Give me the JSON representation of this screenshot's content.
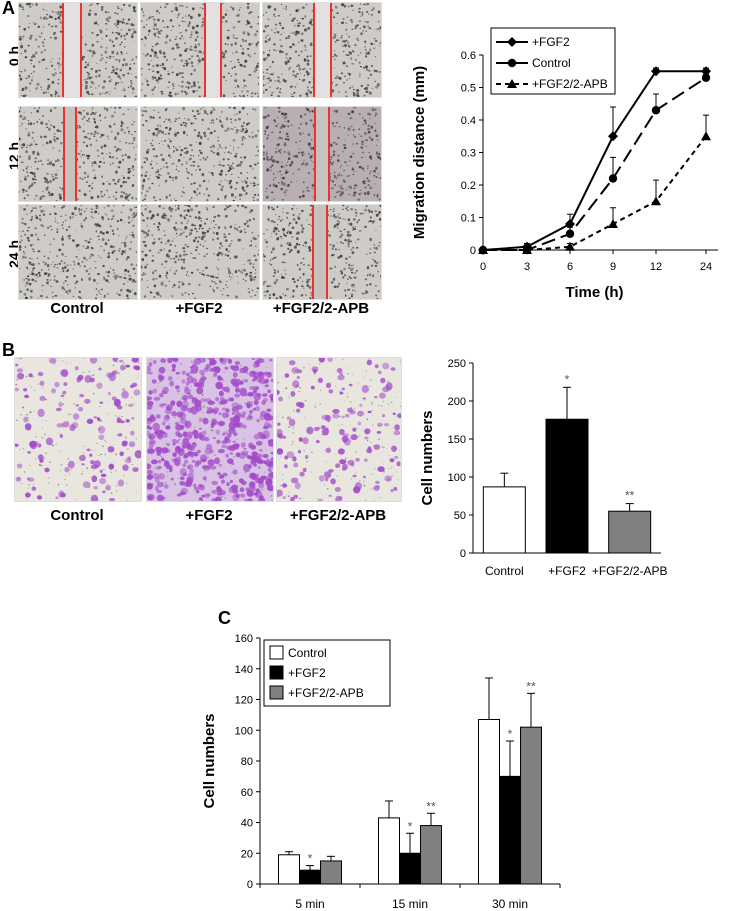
{
  "panels": {
    "a_label": "A",
    "b_label": "B",
    "c_label": "C"
  },
  "panel_a_images": {
    "rows": [
      "0 h",
      "12 h",
      "24 h"
    ],
    "columns": [
      "Control",
      "+FGF2",
      "+FGF2/2-APB"
    ]
  },
  "panel_b_images": {
    "columns": [
      "Control",
      "+FGF2",
      "+FGF2/2-APB"
    ]
  },
  "colors": {
    "gap_line": "#e8332f",
    "micro_bg": "#cfcbc6",
    "stain": "#a24bc9",
    "bar_gray": "#808080"
  },
  "chart_data": [
    {
      "type": "line",
      "id": "migration",
      "x": [
        "0",
        "3",
        "6",
        "9",
        "12",
        "24"
      ],
      "series": [
        {
          "name": "+FGF2",
          "values": [
            0,
            0.01,
            0.08,
            0.35,
            0.55,
            0.55
          ],
          "errors": [
            0,
            0.01,
            0.03,
            0.09,
            0.01,
            0.01
          ],
          "marker": "diamond",
          "dash": "solid"
        },
        {
          "name": "Control",
          "values": [
            0,
            0,
            0.05,
            0.22,
            0.43,
            0.53
          ],
          "errors": [
            0,
            0.005,
            0.02,
            0.065,
            0.05,
            0.01
          ],
          "marker": "circle",
          "dash": "dash"
        },
        {
          "name": "+FGF2/2-APB",
          "values": [
            0,
            0,
            0.01,
            0.08,
            0.15,
            0.35
          ],
          "errors": [
            0,
            0,
            0.01,
            0.05,
            0.065,
            0.065
          ],
          "marker": "triangle",
          "dash": "dot"
        }
      ],
      "xlabel": "Time (h)",
      "ylabel": "Migration distance (mm)",
      "ylim": [
        0,
        0.6
      ],
      "yticks": [
        "0",
        "0.1",
        "0.2",
        "0.3",
        "0.4",
        "0.5",
        "0.6"
      ],
      "legend": "top-left"
    },
    {
      "type": "bar",
      "id": "invasion",
      "categories": [
        "Control",
        "+FGF2",
        "+FGF2/2-APB"
      ],
      "values": [
        87,
        176,
        55
      ],
      "errors": [
        18,
        42,
        10
      ],
      "annotations": [
        "",
        "*",
        "**"
      ],
      "fills": [
        "#ffffff",
        "#000000",
        "#808080"
      ],
      "ylabel": "Cell numbers",
      "ylim": [
        0,
        250
      ],
      "yticks": [
        "0",
        "50",
        "100",
        "150",
        "200",
        "250"
      ]
    },
    {
      "type": "bar",
      "id": "adhesion",
      "categories": [
        "5 min",
        "15 min",
        "30 min"
      ],
      "series": [
        {
          "name": "Control",
          "values": [
            19,
            43,
            107
          ],
          "errors": [
            2,
            11,
            27
          ],
          "annotations": [
            "",
            "",
            ""
          ],
          "fill": "#ffffff"
        },
        {
          "name": "+FGF2",
          "values": [
            9,
            20,
            70
          ],
          "errors": [
            3,
            13,
            23
          ],
          "annotations": [
            "*",
            "*",
            "*"
          ],
          "fill": "#000000"
        },
        {
          "name": "+FGF2/2-APB",
          "values": [
            15,
            38,
            102
          ],
          "errors": [
            3,
            8,
            22
          ],
          "annotations": [
            "",
            "**",
            "**"
          ],
          "fill": "#808080"
        }
      ],
      "ylabel": "Cell numbers",
      "ylim": [
        0,
        160
      ],
      "yticks": [
        "0",
        "20",
        "40",
        "60",
        "80",
        "100",
        "120",
        "140",
        "160"
      ],
      "legend": "top-left"
    }
  ]
}
